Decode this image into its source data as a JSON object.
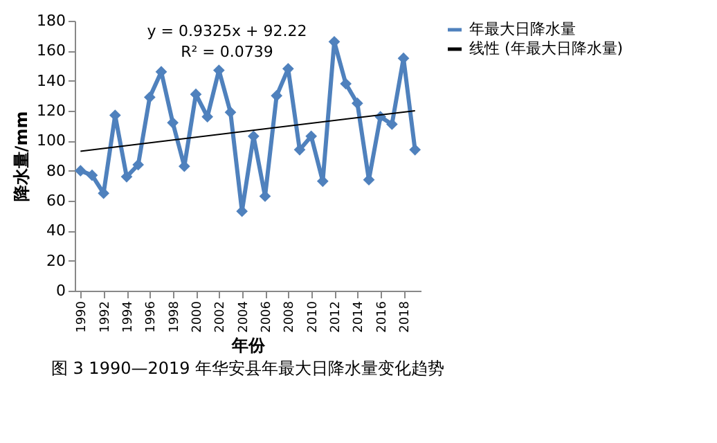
{
  "chart_data": {
    "type": "line",
    "title": "图 3 1990—2019 年华安县年最大日降水量变化趋势",
    "xlabel": "年份",
    "ylabel": "降水量/mm",
    "x": [
      1990,
      1991,
      1992,
      1993,
      1994,
      1995,
      1996,
      1997,
      1998,
      1999,
      2000,
      2001,
      2002,
      2003,
      2004,
      2005,
      2006,
      2007,
      2008,
      2009,
      2010,
      2011,
      2012,
      2013,
      2014,
      2015,
      2016,
      2017,
      2018,
      2019
    ],
    "series": [
      {
        "name": "年最大日降水量",
        "color": "#4f81bd",
        "marker": "diamond",
        "values": [
          80,
          77,
          65,
          117,
          76,
          84,
          129,
          146,
          112,
          83,
          131,
          116,
          147,
          119,
          53,
          103,
          63,
          130,
          148,
          94,
          103,
          73,
          166,
          138,
          125,
          74,
          116,
          111,
          155,
          94
        ]
      },
      {
        "name": "线性 (年最大日降水量)",
        "color": "#000000",
        "marker": "none",
        "x": [
          1990,
          2019
        ],
        "values": [
          93,
          120
        ]
      }
    ],
    "xlim": [
      1989.5,
      2019.5
    ],
    "xticks": [
      1990,
      1992,
      1994,
      1996,
      1998,
      2000,
      2002,
      2004,
      2006,
      2008,
      2010,
      2012,
      2014,
      2016,
      2018
    ],
    "ylim": [
      0,
      180
    ],
    "yticks": [
      0,
      20,
      40,
      60,
      80,
      100,
      120,
      140,
      160,
      180
    ],
    "grid": false,
    "legend": "right",
    "line_style": "solid",
    "annotations": [
      "y = 0.9325x + 92.22",
      "R² = 0.0739"
    ]
  }
}
